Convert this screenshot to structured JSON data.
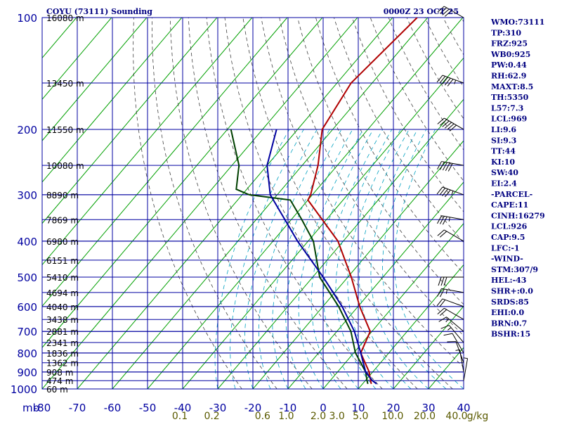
{
  "chart_data": {
    "type": "skew-t sounding",
    "title": "COYU (73111) Sounding",
    "datetime": "0000Z 23 OCT 25",
    "pressure_axis": {
      "label": "mb",
      "levels": [
        100,
        200,
        300,
        400,
        500,
        600,
        700,
        800,
        900,
        1000
      ],
      "range": [
        100,
        1000
      ]
    },
    "temperature_axis": {
      "ticks": [
        -80,
        -70,
        -60,
        -50,
        -40,
        -30,
        -20,
        -10,
        0,
        10,
        20,
        30,
        40
      ],
      "range": [
        -80,
        40
      ]
    },
    "height_labels": [
      {
        "p": 100,
        "label": "16080 m"
      },
      {
        "p": 150,
        "label": "13450 m"
      },
      {
        "p": 200,
        "label": "11550 m"
      },
      {
        "p": 250,
        "label": "10080 m"
      },
      {
        "p": 300,
        "label": "8890 m"
      },
      {
        "p": 350,
        "label": "7869 m"
      },
      {
        "p": 400,
        "label": "6980 m"
      },
      {
        "p": 450,
        "label": "6151 m"
      },
      {
        "p": 500,
        "label": "5410 m"
      },
      {
        "p": 550,
        "label": "4694 m"
      },
      {
        "p": 600,
        "label": "4040 m"
      },
      {
        "p": 650,
        "label": "3438 m"
      },
      {
        "p": 700,
        "label": "2881 m"
      },
      {
        "p": 750,
        "label": "2341 m"
      },
      {
        "p": 800,
        "label": "1836 m"
      },
      {
        "p": 850,
        "label": "1362 m"
      },
      {
        "p": 900,
        "label": "908 m"
      },
      {
        "p": 950,
        "label": "474 m"
      },
      {
        "p": 1000,
        "label": "60 m"
      }
    ],
    "mixing_ratio_labels": [
      {
        "value": 0.1,
        "label": "0.1"
      },
      {
        "value": 0.2,
        "label": "0.2"
      },
      {
        "value": 0.6,
        "label": "0.6"
      },
      {
        "value": 1.0,
        "label": "1.0"
      },
      {
        "value": 2.0,
        "label": "2.0"
      },
      {
        "value": 3.0,
        "label": "3.0"
      },
      {
        "value": 5.0,
        "label": "5.0"
      },
      {
        "value": 10.0,
        "label": "10.0"
      },
      {
        "value": 20.0,
        "label": "20.0"
      },
      {
        "value": 40.0,
        "label": "40.0"
      }
    ],
    "mixing_ratio_unit": "g/kg",
    "series": [
      {
        "name": "Temperature",
        "color": "#b00000",
        "points": [
          {
            "p": 100,
            "t": -63.0
          },
          {
            "p": 150,
            "t": -66.0
          },
          {
            "p": 200,
            "t": -63.0
          },
          {
            "p": 250,
            "t": -55.5
          },
          {
            "p": 300,
            "t": -50.5
          },
          {
            "p": 310,
            "t": -50.0
          },
          {
            "p": 400,
            "t": -31.5
          },
          {
            "p": 500,
            "t": -19.0
          },
          {
            "p": 600,
            "t": -9.5
          },
          {
            "p": 700,
            "t": -0.5
          },
          {
            "p": 800,
            "t": 2.0
          },
          {
            "p": 900,
            "t": 9.0
          },
          {
            "p": 950,
            "t": 11.5
          },
          {
            "p": 969,
            "t": 12.5
          }
        ]
      },
      {
        "name": "Dewpoint",
        "color": "#004000",
        "points": [
          {
            "p": 200,
            "t": -89.0
          },
          {
            "p": 250,
            "t": -78.0
          },
          {
            "p": 290,
            "t": -73.0
          },
          {
            "p": 300,
            "t": -68.0
          },
          {
            "p": 310,
            "t": -55.0
          },
          {
            "p": 350,
            "t": -47.0
          },
          {
            "p": 400,
            "t": -38.5
          },
          {
            "p": 500,
            "t": -28.0
          },
          {
            "p": 600,
            "t": -15.5
          },
          {
            "p": 700,
            "t": -6.0
          },
          {
            "p": 800,
            "t": 0.5
          },
          {
            "p": 900,
            "t": 8.0
          },
          {
            "p": 950,
            "t": 10.5
          },
          {
            "p": 969,
            "t": 11.5
          }
        ]
      },
      {
        "name": "Parcel",
        "color": "#0000a0",
        "points": [
          {
            "p": 200,
            "t": -76.0
          },
          {
            "p": 250,
            "t": -70.0
          },
          {
            "p": 300,
            "t": -62.0
          },
          {
            "p": 400,
            "t": -43.0
          },
          {
            "p": 500,
            "t": -27.0
          },
          {
            "p": 600,
            "t": -14.5
          },
          {
            "p": 700,
            "t": -5.0
          },
          {
            "p": 800,
            "t": 2.0
          },
          {
            "p": 900,
            "t": 8.0
          },
          {
            "p": 950,
            "t": 12.0
          },
          {
            "p": 969,
            "t": 14.0
          }
        ]
      }
    ],
    "indices": [
      "WMO:73111",
      "TP:310",
      "FRZ:925",
      "WB0:925",
      "PW:0.44",
      "RH:62.9",
      "MAXT:8.5",
      "TH:5350",
      "L57:7.3",
      "LCL:969",
      "LI:9.6",
      "SI:9.3",
      "TT:44",
      "KI:10",
      "SW:40",
      "EI:2.4",
      "-PARCEL-",
      "CAPE:11",
      "CINH:16279",
      "LCL:926",
      "CAP:9.5",
      "LFC:-1",
      "-WIND-",
      "STM:307/9",
      "HEL:-43",
      "SHR+:0.0",
      "SRDS:85",
      "EHI:0.0",
      "BRN:0.7",
      "BSHR:15"
    ],
    "wind_barbs": [
      {
        "p": 100,
        "dir": 300,
        "spd": 40
      },
      {
        "p": 150,
        "dir": 290,
        "spd": 55
      },
      {
        "p": 200,
        "dir": 300,
        "spd": 60
      },
      {
        "p": 250,
        "dir": 280,
        "spd": 50
      },
      {
        "p": 300,
        "dir": 290,
        "spd": 45
      },
      {
        "p": 350,
        "dir": 280,
        "spd": 35
      },
      {
        "p": 400,
        "dir": 300,
        "spd": 20
      },
      {
        "p": 500,
        "dir": 270,
        "spd": 30
      },
      {
        "p": 550,
        "dir": 280,
        "spd": 25
      },
      {
        "p": 600,
        "dir": 290,
        "spd": 20
      },
      {
        "p": 650,
        "dir": 300,
        "spd": 20
      },
      {
        "p": 700,
        "dir": 310,
        "spd": 15
      },
      {
        "p": 750,
        "dir": 320,
        "spd": 15
      },
      {
        "p": 800,
        "dir": 330,
        "spd": 10
      },
      {
        "p": 850,
        "dir": 340,
        "spd": 10
      },
      {
        "p": 900,
        "dir": 350,
        "spd": 5
      },
      {
        "p": 950,
        "dir": 10,
        "spd": 5
      }
    ],
    "colors": {
      "grid": "#0000a0",
      "isotherm": "#00a000",
      "dry_adiabat": "#404040",
      "moist_adiabat": "#00a0c0",
      "axis_text": "#0000a0",
      "mixing_text": "#5a5a00",
      "title_text": "#000080"
    }
  }
}
